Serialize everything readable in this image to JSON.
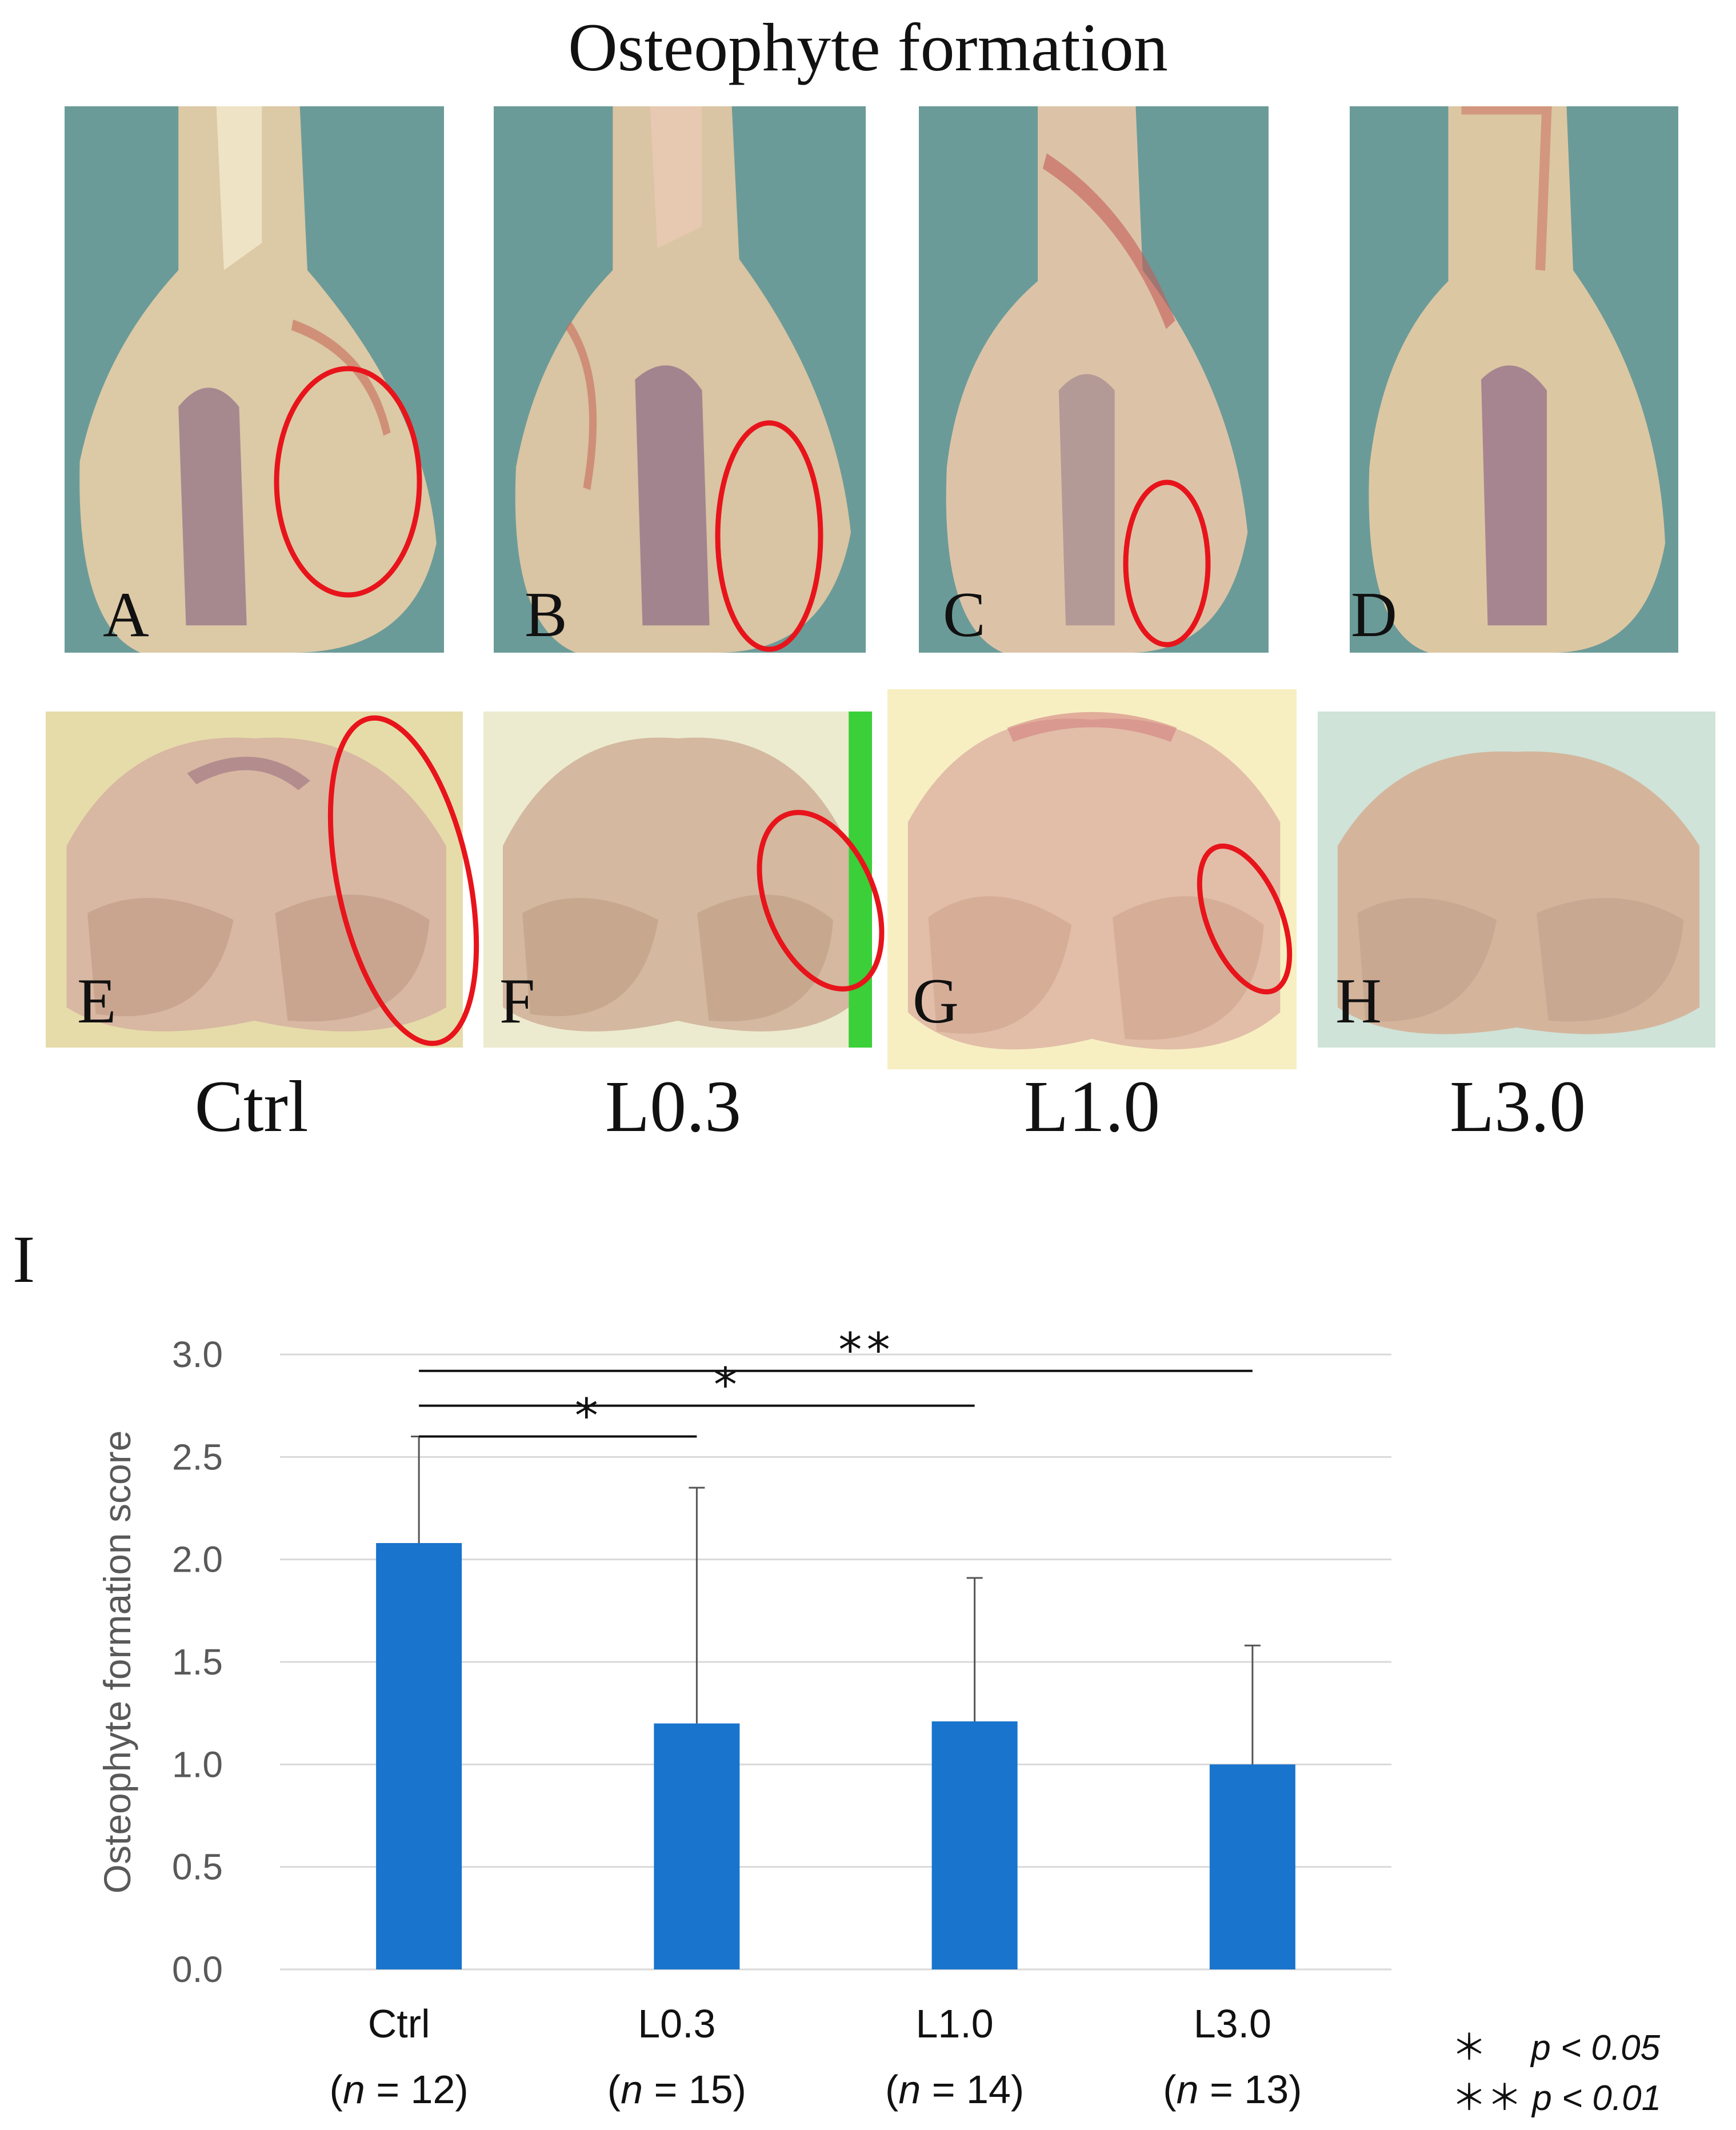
{
  "figure_title": "Osteophyte formation",
  "panels_top": [
    {
      "letter": "A",
      "has_circle": true
    },
    {
      "letter": "B",
      "has_circle": true
    },
    {
      "letter": "C",
      "has_circle": true
    },
    {
      "letter": "D",
      "has_circle": false
    }
  ],
  "panels_bottom": [
    {
      "letter": "E",
      "has_circle": true
    },
    {
      "letter": "F",
      "has_circle": true
    },
    {
      "letter": "G",
      "has_circle": true
    },
    {
      "letter": "H",
      "has_circle": false
    }
  ],
  "group_labels": [
    "Ctrl",
    "L0.3",
    "L1.0",
    "L3.0"
  ],
  "chart_label": "I",
  "colors": {
    "bar": "#1874CD",
    "circle": "#E8141B",
    "grid": "#D9D9D9",
    "text_axis": "#595959"
  },
  "chart_data": {
    "type": "bar",
    "title": "",
    "ylabel": "Osteophyte formation score",
    "xlabel": "",
    "ylim": [
      0,
      3.0
    ],
    "yticks": [
      "0.0",
      "0.5",
      "1.0",
      "1.5",
      "2.0",
      "2.5",
      "3.0"
    ],
    "categories": [
      "Ctrl",
      "L0.3",
      "L1.0",
      "L3.0"
    ],
    "n_labels": [
      "12",
      "15",
      "14",
      "13"
    ],
    "values": [
      2.08,
      1.2,
      1.21,
      1.0
    ],
    "errors": [
      0.52,
      1.15,
      0.7,
      0.58
    ],
    "significance": [
      {
        "from": 0,
        "to": 1,
        "label": "*",
        "y": 2.6
      },
      {
        "from": 0,
        "to": 2,
        "label": "*",
        "y": 2.75
      },
      {
        "from": 0,
        "to": 3,
        "label": "**",
        "y": 2.92
      }
    ]
  },
  "legend": [
    {
      "stars": "＊",
      "text": "p < 0.05"
    },
    {
      "stars": "＊＊",
      "text": "p < 0.01"
    }
  ]
}
